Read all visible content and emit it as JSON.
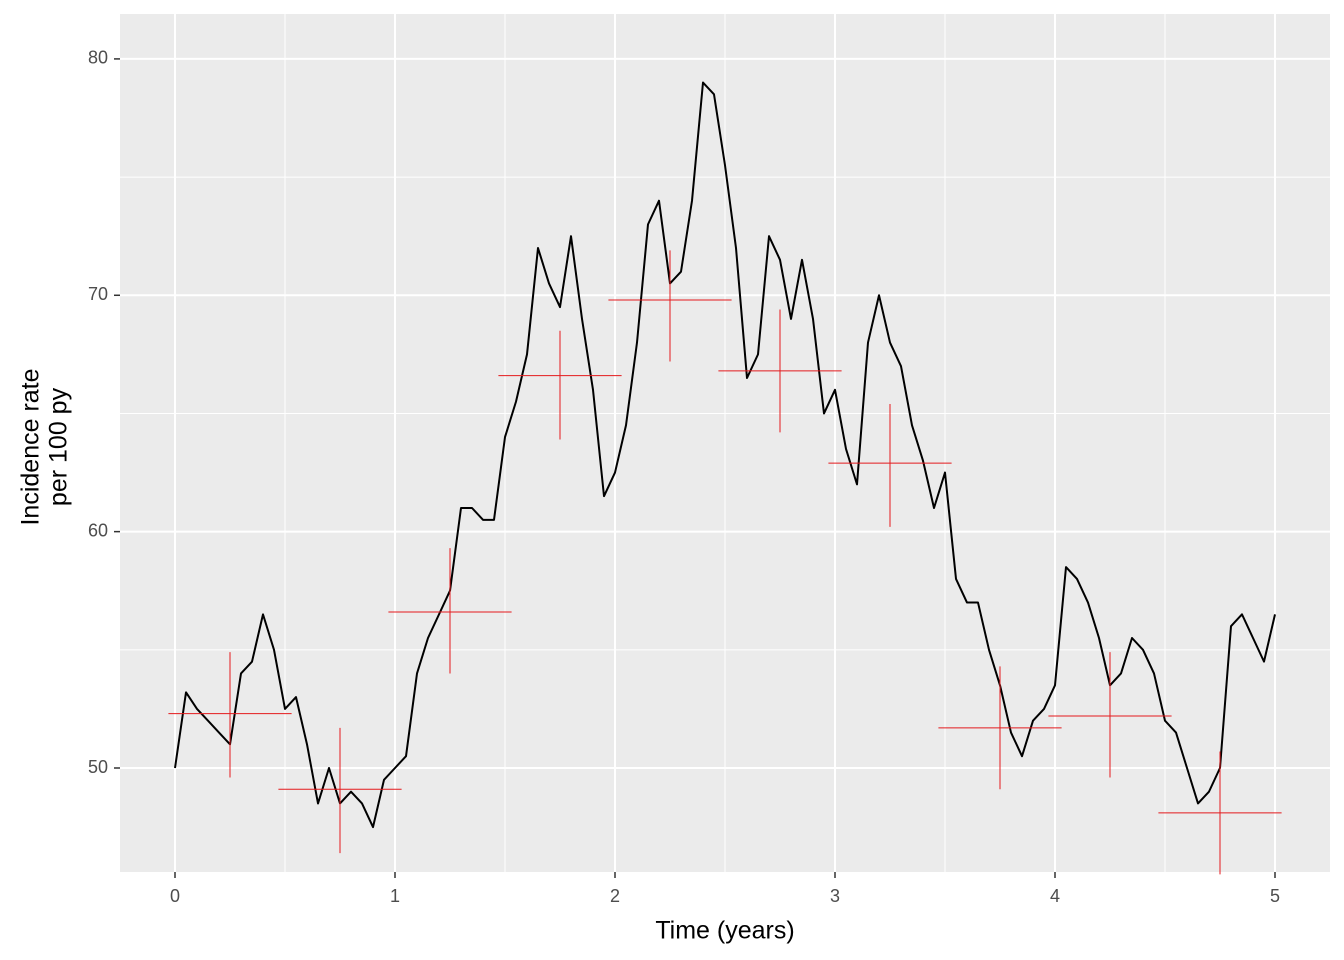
{
  "chart_data": {
    "type": "line",
    "xlabel": "Time (years)",
    "ylabel": [
      "Incidence rate",
      "per 100 py"
    ],
    "xlim": [
      -0.25,
      5.25
    ],
    "ylim": [
      45.6,
      81.9
    ],
    "xticks": [
      0,
      1,
      2,
      3,
      4,
      5
    ],
    "yticks": [
      50,
      60,
      70,
      80
    ],
    "xminorticks": [
      0.5,
      1.5,
      2.5,
      3.5,
      4.5
    ],
    "yminorticks": [
      55,
      65,
      75
    ],
    "grid": true,
    "x": [
      0,
      0.05,
      0.1,
      0.15,
      0.2,
      0.25,
      0.3,
      0.35,
      0.4,
      0.45,
      0.5,
      0.55,
      0.6,
      0.65,
      0.7,
      0.75,
      0.8,
      0.85,
      0.9,
      0.95,
      1,
      1.05,
      1.1,
      1.15,
      1.2,
      1.25,
      1.3,
      1.35,
      1.4,
      1.45,
      1.5,
      1.55,
      1.6,
      1.65,
      1.7,
      1.75,
      1.8,
      1.85,
      1.9,
      1.95,
      2,
      2.05,
      2.1,
      2.15,
      2.2,
      2.25,
      2.3,
      2.35,
      2.4,
      2.45,
      2.5,
      2.55,
      2.6,
      2.65,
      2.7,
      2.75,
      2.8,
      2.85,
      2.9,
      2.95,
      3,
      3.05,
      3.1,
      3.15,
      3.2,
      3.25,
      3.3,
      3.35,
      3.4,
      3.45,
      3.5,
      3.55,
      3.6,
      3.65,
      3.7,
      3.75,
      3.8,
      3.85,
      3.9,
      3.95,
      4,
      4.05,
      4.1,
      4.15,
      4.2,
      4.25,
      4.3,
      4.35,
      4.4,
      4.45,
      4.5,
      4.55,
      4.6,
      4.65,
      4.7,
      4.75,
      4.8,
      4.85,
      4.9,
      4.95,
      5
    ],
    "series": [
      {
        "color": "#000000",
        "values": [
          50,
          53.2,
          52.5,
          52,
          51.5,
          51,
          54,
          54.5,
          56.5,
          55,
          52.5,
          53,
          51,
          48.5,
          50,
          48.5,
          49,
          48.5,
          47.5,
          49.5,
          50,
          50.5,
          54,
          55.5,
          56.5,
          57.5,
          61,
          61,
          60.5,
          60.5,
          64,
          65.5,
          67.5,
          72,
          70.5,
          69.5,
          72.5,
          69,
          66,
          61.5,
          62.5,
          64.5,
          68,
          73,
          74,
          70.5,
          71,
          74,
          79,
          78.5,
          75.5,
          72,
          66.5,
          67.5,
          72.5,
          71.5,
          69,
          71.5,
          69,
          65,
          66,
          63.5,
          62,
          68,
          70,
          68,
          67,
          64.5,
          63,
          61,
          62.5,
          58,
          57,
          57,
          55,
          53.5,
          51.5,
          50.5,
          52,
          52.5,
          53.5,
          58.5,
          58,
          57,
          55.5,
          53.5,
          54,
          55.5,
          55,
          54,
          52,
          51.5,
          50,
          48.5,
          49,
          50,
          56,
          56.5,
          55.5,
          54.5,
          56.5
        ]
      }
    ],
    "errorbars": {
      "color": "#e41a1c",
      "x": [
        0.25,
        0.75,
        1.25,
        1.75,
        2.25,
        2.75,
        3.25,
        3.75,
        4.25,
        4.75
      ],
      "values": [
        52.3,
        49.1,
        56.6,
        66.6,
        69.8,
        66.8,
        62.9,
        51.7,
        52.2,
        48.1
      ],
      "lower": [
        49.6,
        46.4,
        54.0,
        63.9,
        67.2,
        64.2,
        60.2,
        49.1,
        49.6,
        45.5
      ],
      "upper": [
        54.9,
        51.7,
        59.3,
        68.5,
        71.9,
        69.4,
        65.4,
        54.3,
        54.9,
        50.7
      ],
      "xmin": [
        -0.03,
        0.47,
        0.97,
        1.47,
        1.97,
        2.47,
        2.97,
        3.47,
        3.97,
        4.47
      ],
      "xmax": [
        0.53,
        1.03,
        1.53,
        2.03,
        2.53,
        3.03,
        3.53,
        4.03,
        4.53,
        5.03
      ]
    }
  }
}
